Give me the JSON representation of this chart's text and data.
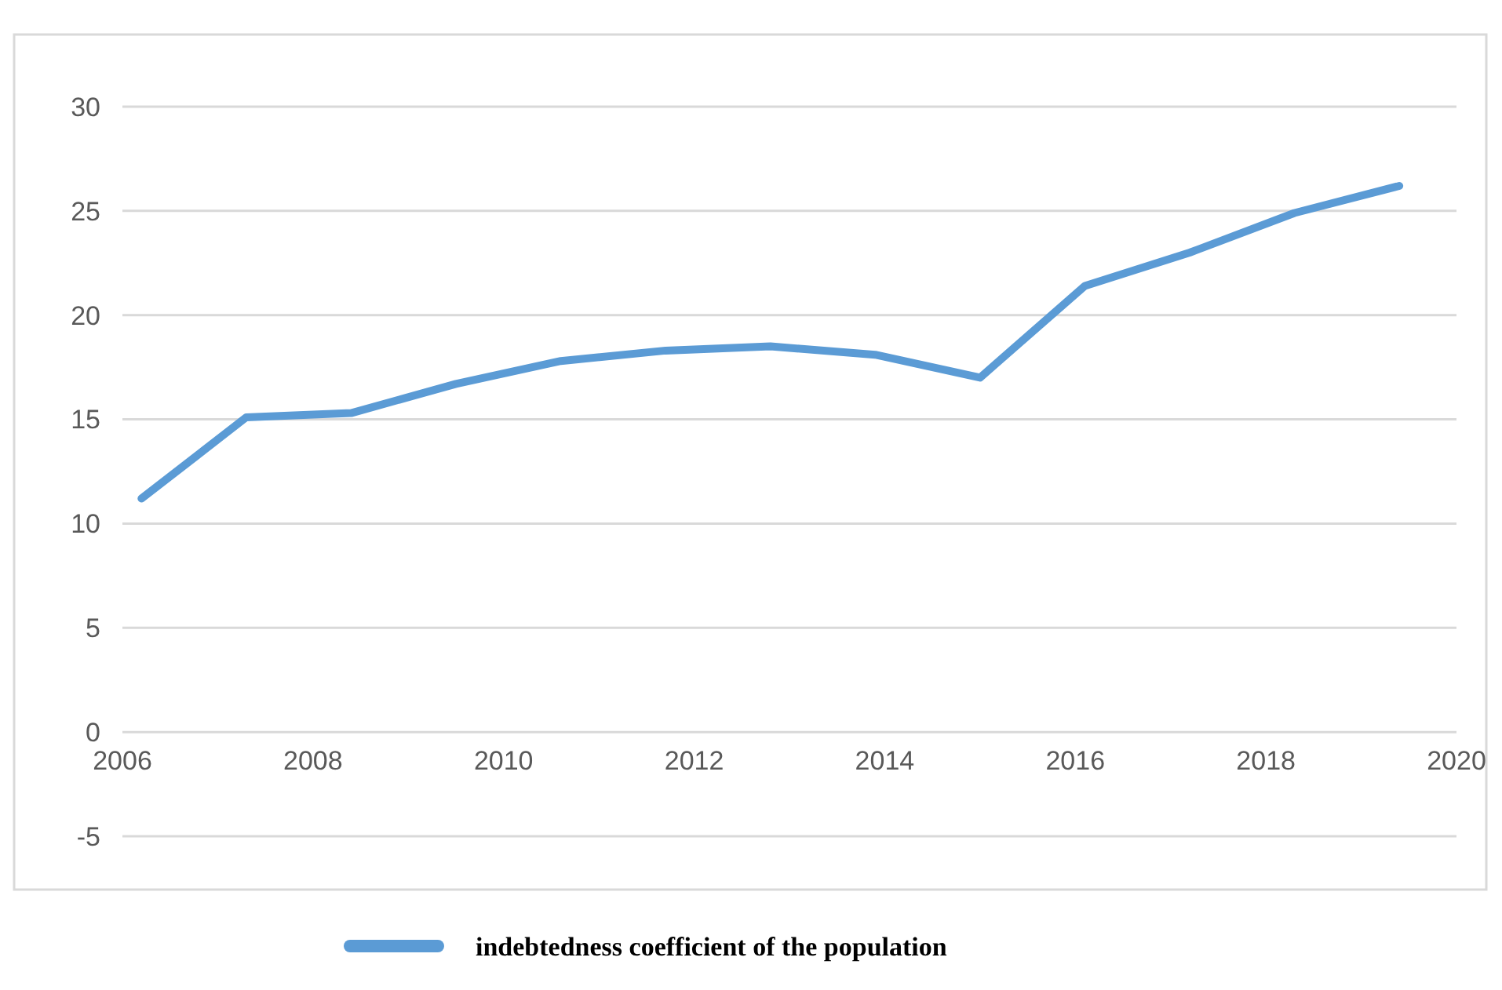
{
  "chart_data": {
    "type": "line",
    "x": [
      2006.2,
      2007.3,
      2008.4,
      2009.5,
      2010.6,
      2011.7,
      2012.8,
      2013.9,
      2015.0,
      2016.1,
      2017.2,
      2018.3,
      2019.4
    ],
    "series": [
      {
        "name": "indebtedness coefficient of the population",
        "color": "#5b9bd5",
        "values": [
          11.2,
          15.1,
          15.3,
          16.7,
          17.8,
          18.3,
          18.5,
          18.1,
          17.0,
          21.4,
          23.0,
          24.9,
          26.2
        ]
      }
    ],
    "xlim": [
      2006,
      2020
    ],
    "xticks": [
      2006,
      2008,
      2010,
      2012,
      2014,
      2016,
      2018,
      2020
    ],
    "ylim": [
      -5,
      30
    ],
    "yticks": [
      -5,
      0,
      5,
      10,
      15,
      20,
      25,
      30
    ],
    "grid": "y",
    "legend": "bottom",
    "marker": "none",
    "line_style": "solid"
  }
}
